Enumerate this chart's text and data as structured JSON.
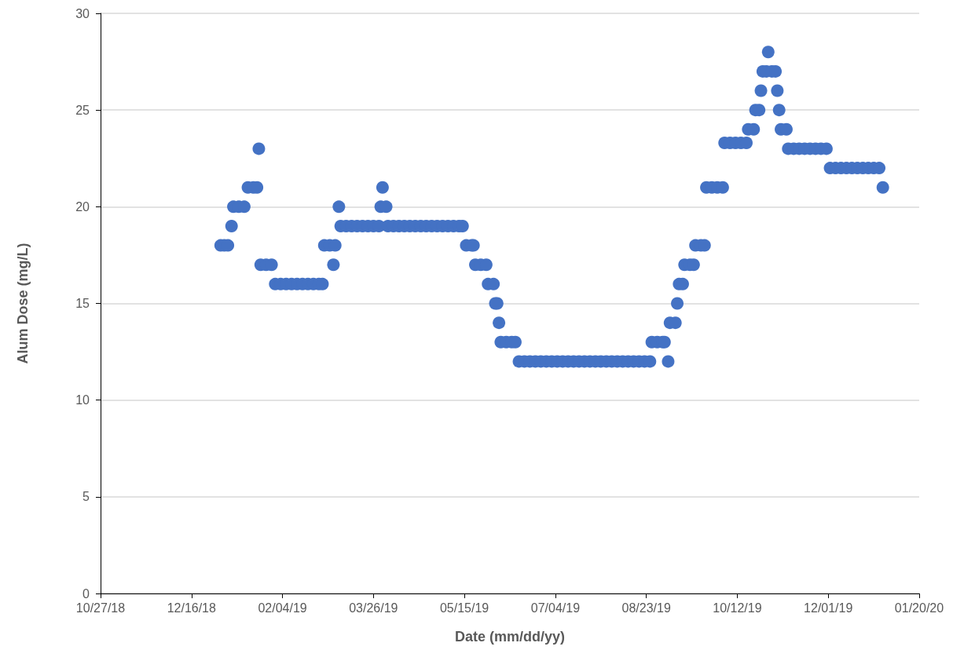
{
  "chart_data": {
    "type": "scatter",
    "xlabel": "Date (mm/dd/yy)",
    "ylabel": "Alum Dose (mg/L)",
    "xlim": [
      "2018-10-27",
      "2020-01-20"
    ],
    "xticks": [
      {
        "value": "2018-10-27",
        "label": "10/27/18"
      },
      {
        "value": "2018-12-16",
        "label": "12/16/18"
      },
      {
        "value": "2019-02-04",
        "label": "02/04/19"
      },
      {
        "value": "2019-03-26",
        "label": "03/26/19"
      },
      {
        "value": "2019-05-15",
        "label": "05/15/19"
      },
      {
        "value": "2019-07-04",
        "label": "07/04/19"
      },
      {
        "value": "2019-08-23",
        "label": "08/23/19"
      },
      {
        "value": "2019-10-12",
        "label": "10/12/19"
      },
      {
        "value": "2019-12-01",
        "label": "12/01/19"
      },
      {
        "value": "2020-01-20",
        "label": "01/20/20"
      }
    ],
    "ylim": [
      0,
      30
    ],
    "yticks": [
      0,
      5,
      10,
      15,
      20,
      25,
      30
    ],
    "grid": "y",
    "marker": "circle",
    "series": [
      {
        "color": "#4472c4",
        "x": [
          "2019-01-01",
          "2019-01-03",
          "2019-01-05",
          "2019-01-07",
          "2019-01-08",
          "2019-01-11",
          "2019-01-14",
          "2019-01-16",
          "2019-01-19",
          "2019-01-21",
          "2019-01-22",
          "2019-01-23",
          "2019-01-26",
          "2019-01-29",
          "2019-01-31",
          "2019-02-03",
          "2019-02-06",
          "2019-02-09",
          "2019-02-12",
          "2019-02-15",
          "2019-02-18",
          "2019-02-21",
          "2019-02-24",
          "2019-02-26",
          "2019-02-27",
          "2019-03-02",
          "2019-03-04",
          "2019-03-05",
          "2019-03-07",
          "2019-03-08",
          "2019-03-11",
          "2019-03-14",
          "2019-03-17",
          "2019-03-20",
          "2019-03-23",
          "2019-03-26",
          "2019-03-29",
          "2019-03-30",
          "2019-03-31",
          "2019-04-02",
          "2019-04-03",
          "2019-04-06",
          "2019-04-09",
          "2019-04-12",
          "2019-04-15",
          "2019-04-18",
          "2019-04-21",
          "2019-04-24",
          "2019-04-27",
          "2019-04-30",
          "2019-05-03",
          "2019-05-06",
          "2019-05-09",
          "2019-05-12",
          "2019-05-14",
          "2019-05-16",
          "2019-05-19",
          "2019-05-20",
          "2019-05-21",
          "2019-05-24",
          "2019-05-27",
          "2019-05-28",
          "2019-05-31",
          "2019-06-01",
          "2019-06-02",
          "2019-06-03",
          "2019-06-04",
          "2019-06-07",
          "2019-06-10",
          "2019-06-12",
          "2019-06-14",
          "2019-06-17",
          "2019-06-20",
          "2019-06-23",
          "2019-06-26",
          "2019-06-29",
          "2019-07-02",
          "2019-07-05",
          "2019-07-08",
          "2019-07-11",
          "2019-07-14",
          "2019-07-17",
          "2019-07-20",
          "2019-07-23",
          "2019-07-26",
          "2019-07-29",
          "2019-08-01",
          "2019-08-04",
          "2019-08-07",
          "2019-08-10",
          "2019-08-13",
          "2019-08-16",
          "2019-08-19",
          "2019-08-22",
          "2019-08-25",
          "2019-08-26",
          "2019-08-29",
          "2019-09-01",
          "2019-09-02",
          "2019-09-04",
          "2019-09-05",
          "2019-09-08",
          "2019-09-09",
          "2019-09-10",
          "2019-09-12",
          "2019-09-13",
          "2019-09-16",
          "2019-09-18",
          "2019-09-19",
          "2019-09-22",
          "2019-09-24",
          "2019-09-25",
          "2019-09-28",
          "2019-10-01",
          "2019-10-04",
          "2019-10-05",
          "2019-10-08",
          "2019-10-11",
          "2019-10-14",
          "2019-10-17",
          "2019-10-18",
          "2019-10-21",
          "2019-10-22",
          "2019-10-24",
          "2019-10-25",
          "2019-10-26",
          "2019-10-28",
          "2019-10-29",
          "2019-10-31",
          "2019-11-02",
          "2019-11-03",
          "2019-11-04",
          "2019-11-05",
          "2019-11-08",
          "2019-11-09",
          "2019-11-12",
          "2019-11-15",
          "2019-11-18",
          "2019-11-21",
          "2019-11-24",
          "2019-11-27",
          "2019-11-30",
          "2019-12-02",
          "2019-12-05",
          "2019-12-08",
          "2019-12-11",
          "2019-12-14",
          "2019-12-17",
          "2019-12-20",
          "2019-12-23",
          "2019-12-26",
          "2019-12-29",
          "2019-12-31"
        ],
        "values": [
          18,
          18,
          18,
          19,
          20,
          20,
          20,
          21,
          21,
          21,
          23,
          17,
          17,
          17,
          16,
          16,
          16,
          16,
          16,
          16,
          16,
          16,
          16,
          16,
          18,
          18,
          17,
          18,
          20,
          19,
          19,
          19,
          19,
          19,
          19,
          19,
          19,
          20,
          21,
          20,
          19,
          19,
          19,
          19,
          19,
          19,
          19,
          19,
          19,
          19,
          19,
          19,
          19,
          19,
          19,
          18,
          18,
          18,
          17,
          17,
          17,
          16,
          16,
          15,
          15,
          14,
          13,
          13,
          13,
          13,
          12,
          12,
          12,
          12,
          12,
          12,
          12,
          12,
          12,
          12,
          12,
          12,
          12,
          12,
          12,
          12,
          12,
          12,
          12,
          12,
          12,
          12,
          12,
          12,
          12,
          13,
          13,
          13,
          13,
          12,
          14,
          14,
          15,
          16,
          16,
          17,
          17,
          17,
          18,
          18,
          18,
          21,
          21,
          21,
          21,
          23.3,
          23.3,
          23.3,
          23.3,
          23.3,
          24,
          24,
          25,
          25,
          26,
          27,
          27,
          28,
          27,
          27,
          26,
          25,
          24,
          24,
          23,
          23,
          23,
          23,
          23,
          23,
          23,
          23,
          22,
          22,
          22,
          22,
          22,
          22,
          22,
          22,
          22,
          22,
          21
        ]
      }
    ]
  }
}
